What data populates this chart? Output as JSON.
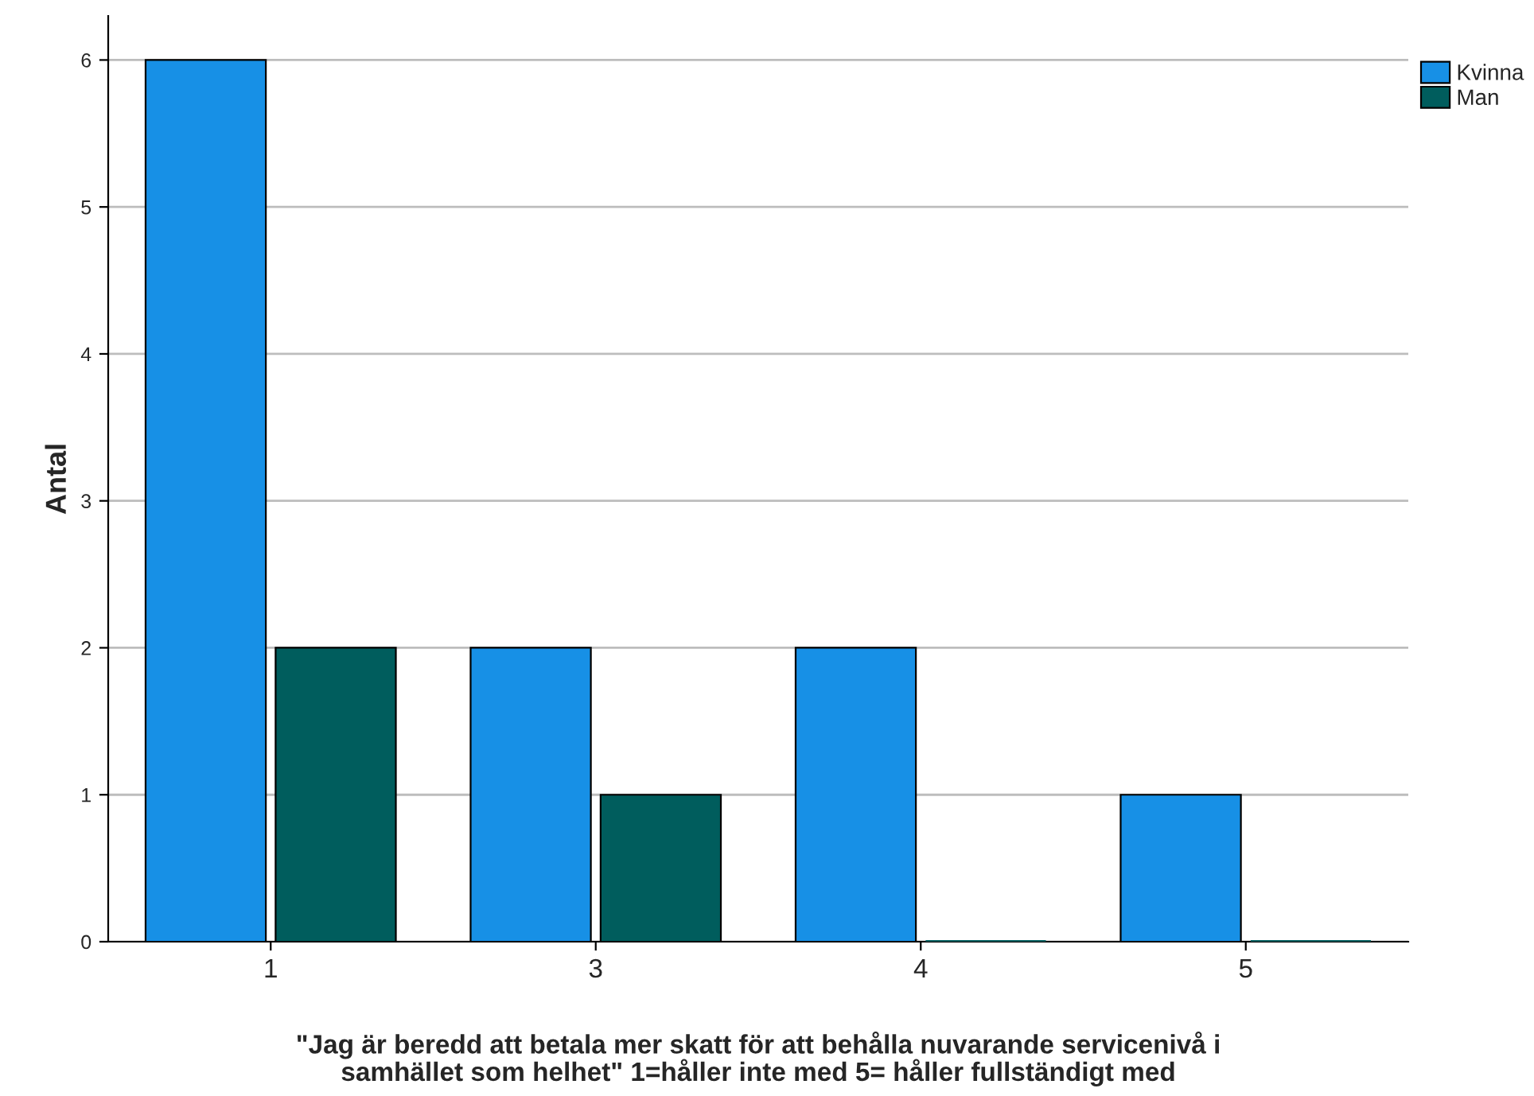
{
  "chart_data": {
    "type": "bar",
    "categories": [
      "1",
      "3",
      "4",
      "5"
    ],
    "series": [
      {
        "name": "Kvinna",
        "color": "#1790e6",
        "values": [
          6,
          2,
          2,
          1
        ]
      },
      {
        "name": "Man",
        "color": "#005d5d",
        "values": [
          2,
          1,
          0,
          0
        ]
      }
    ],
    "xlabel": "\"Jag är beredd att betala mer skatt för att behålla nuvarande servicenivå i\nsamhället som helhet\" 1=håller inte med 5= håller fullständigt med",
    "ylabel": "Antal",
    "ylim": [
      0,
      6.3
    ],
    "yticks": [
      0,
      1,
      2,
      3,
      4,
      5,
      6
    ],
    "grid": "y",
    "legend": "top right"
  }
}
